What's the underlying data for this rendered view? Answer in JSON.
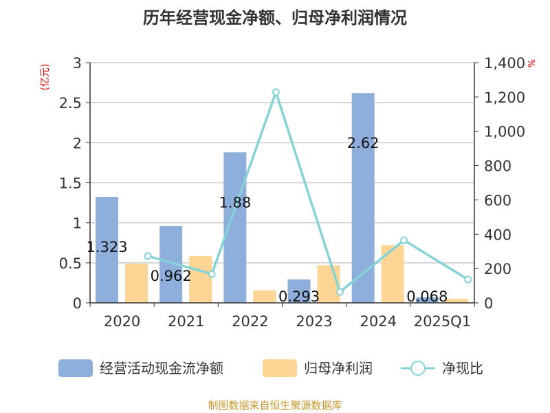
{
  "chart_data": {
    "type": "bar+line",
    "title": "历年经营现金净额、归母净利润情况",
    "categories": [
      "2020",
      "2021",
      "2022",
      "2023",
      "2024",
      "2025Q1"
    ],
    "left_axis": {
      "label": "(亿元)",
      "range": [
        0,
        3
      ],
      "ticks": [
        "0",
        "0.5",
        "1",
        "1.5",
        "2",
        "2.5",
        "3"
      ]
    },
    "right_axis": {
      "label": "%",
      "range": [
        0,
        1400
      ],
      "ticks": [
        "0",
        "200",
        "400",
        "600",
        "800",
        "1,000",
        "1,200",
        "1,400"
      ]
    },
    "grid": true,
    "legend_position": "bottom",
    "series": [
      {
        "name": "经营活动现金流净额",
        "type": "bar",
        "axis": "left",
        "color": "#8eaedb",
        "values": [
          1.323,
          0.962,
          1.88,
          0.293,
          2.62,
          0.068
        ],
        "labels": [
          "1.323",
          "0.962",
          "1.88",
          "0.293",
          "2.62",
          "0.068"
        ]
      },
      {
        "name": "归母净利润",
        "type": "bar",
        "axis": "left",
        "color": "#fdd595",
        "values": [
          0.49,
          0.585,
          0.155,
          0.47,
          0.72,
          0.05
        ]
      },
      {
        "name": "净现比",
        "type": "line",
        "axis": "right",
        "color": "#85d3d7",
        "values": [
          273,
          168,
          1228,
          64,
          365,
          136
        ]
      }
    ]
  },
  "footer": "制图数据来自恒生聚源数据库"
}
